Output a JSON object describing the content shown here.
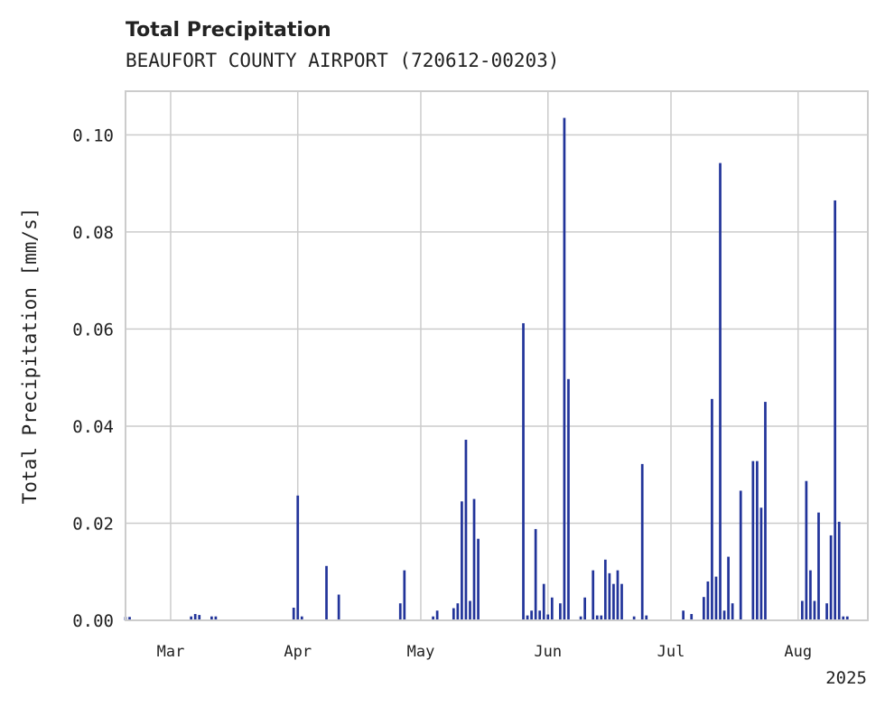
{
  "chart_data": {
    "type": "bar",
    "title": "Total Precipitation",
    "subtitle": "BEAUFORT COUNTY AIRPORT (720612-00203)",
    "ylabel": "Total Precipitation [mm/s]",
    "xlabel": "",
    "year_label": "2025",
    "x_range": [
      "2025-02-18",
      "2025-08-18"
    ],
    "ylim": [
      0,
      0.109
    ],
    "grid": true,
    "bar_color": "#22349a",
    "x_ticks": [
      {
        "date": "2025-03-01",
        "label": "Mar"
      },
      {
        "date": "2025-04-01",
        "label": "Apr"
      },
      {
        "date": "2025-05-01",
        "label": "May"
      },
      {
        "date": "2025-06-01",
        "label": "Jun"
      },
      {
        "date": "2025-07-01",
        "label": "Jul"
      },
      {
        "date": "2025-08-01",
        "label": "Aug"
      }
    ],
    "y_ticks": [
      {
        "value": 0.0,
        "label": "0.00"
      },
      {
        "value": 0.02,
        "label": "0.02"
      },
      {
        "value": 0.04,
        "label": "0.04"
      },
      {
        "value": 0.06,
        "label": "0.06"
      },
      {
        "value": 0.08,
        "label": "0.08"
      },
      {
        "value": 0.1,
        "label": "0.10"
      }
    ],
    "series": [
      {
        "points": [
          [
            "2025-02-18",
            0.0007
          ],
          [
            "2025-02-19",
            0.0007
          ],
          [
            "2025-03-06",
            0.0008
          ],
          [
            "2025-03-07",
            0.0013
          ],
          [
            "2025-03-08",
            0.0011
          ],
          [
            "2025-03-11",
            0.0008
          ],
          [
            "2025-03-12",
            0.0008
          ],
          [
            "2025-03-31",
            0.0026
          ],
          [
            "2025-04-01",
            0.0257
          ],
          [
            "2025-04-02",
            0.0008
          ],
          [
            "2025-04-08",
            0.0112
          ],
          [
            "2025-04-11",
            0.0053
          ],
          [
            "2025-04-26",
            0.0035
          ],
          [
            "2025-04-27",
            0.0103
          ],
          [
            "2025-05-04",
            0.0008
          ],
          [
            "2025-05-05",
            0.002
          ],
          [
            "2025-05-09",
            0.0025
          ],
          [
            "2025-05-10",
            0.0035
          ],
          [
            "2025-05-11",
            0.0245
          ],
          [
            "2025-05-12",
            0.0372
          ],
          [
            "2025-05-13",
            0.004
          ],
          [
            "2025-05-14",
            0.025
          ],
          [
            "2025-05-15",
            0.0168
          ],
          [
            "2025-05-26",
            0.0612
          ],
          [
            "2025-05-27",
            0.001
          ],
          [
            "2025-05-28",
            0.002
          ],
          [
            "2025-05-29",
            0.0188
          ],
          [
            "2025-05-30",
            0.002
          ],
          [
            "2025-05-31",
            0.0075
          ],
          [
            "2025-06-01",
            0.0012
          ],
          [
            "2025-06-02",
            0.0047
          ],
          [
            "2025-06-04",
            0.0035
          ],
          [
            "2025-06-05",
            0.1035
          ],
          [
            "2025-06-06",
            0.0497
          ],
          [
            "2025-06-09",
            0.0008
          ],
          [
            "2025-06-10",
            0.0047
          ],
          [
            "2025-06-12",
            0.0103
          ],
          [
            "2025-06-13",
            0.001
          ],
          [
            "2025-06-14",
            0.001
          ],
          [
            "2025-06-15",
            0.0125
          ],
          [
            "2025-06-16",
            0.0097
          ],
          [
            "2025-06-17",
            0.0075
          ],
          [
            "2025-06-18",
            0.0103
          ],
          [
            "2025-06-19",
            0.0075
          ],
          [
            "2025-06-22",
            0.0008
          ],
          [
            "2025-06-24",
            0.0322
          ],
          [
            "2025-06-25",
            0.001
          ],
          [
            "2025-07-04",
            0.002
          ],
          [
            "2025-07-06",
            0.0013
          ],
          [
            "2025-07-09",
            0.0048
          ],
          [
            "2025-07-10",
            0.008
          ],
          [
            "2025-07-11",
            0.0456
          ],
          [
            "2025-07-12",
            0.009
          ],
          [
            "2025-07-13",
            0.0942
          ],
          [
            "2025-07-14",
            0.002
          ],
          [
            "2025-07-15",
            0.0131
          ],
          [
            "2025-07-16",
            0.0035
          ],
          [
            "2025-07-18",
            0.0267
          ],
          [
            "2025-07-21",
            0.0328
          ],
          [
            "2025-07-22",
            0.0328
          ],
          [
            "2025-07-23",
            0.0232
          ],
          [
            "2025-07-24",
            0.045
          ],
          [
            "2025-08-02",
            0.004
          ],
          [
            "2025-08-03",
            0.0287
          ],
          [
            "2025-08-04",
            0.0103
          ],
          [
            "2025-08-05",
            0.004
          ],
          [
            "2025-08-06",
            0.0222
          ],
          [
            "2025-08-08",
            0.0035
          ],
          [
            "2025-08-09",
            0.0175
          ],
          [
            "2025-08-10",
            0.0865
          ],
          [
            "2025-08-11",
            0.0203
          ],
          [
            "2025-08-12",
            0.0008
          ],
          [
            "2025-08-13",
            0.0008
          ]
        ]
      }
    ]
  }
}
